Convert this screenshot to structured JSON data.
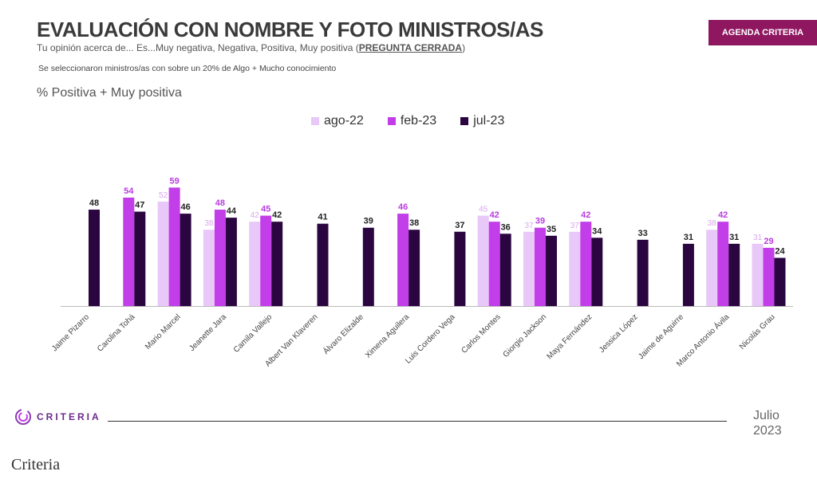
{
  "header": {
    "title": "EVALUACIÓN CON NOMBRE Y FOTO MINISTROS/AS",
    "subtitle": "Tu opinión acerca de... Es...Muy negativa, Negativa, Positiva, Muy positiva (",
    "subtitle_emph": "PREGUNTA CERRADA",
    "subtitle_end": ")",
    "note": "Se seleccionaron ministros/as con sobre un 20% de Algo + Mucho conocimiento",
    "badge": "AGENDA CRITERIA"
  },
  "footer": {
    "logo": "CRITERIA",
    "month": "Julio",
    "year": "2023",
    "caption": "Criteria"
  },
  "chart_data": {
    "type": "bar",
    "title": "EVALUACIÓN CON NOMBRE Y FOTO MINISTROS/AS",
    "ylabel": "% Positiva + Muy positiva",
    "xlabel": "",
    "ylim": [
      0,
      60
    ],
    "grid": false,
    "legend_position": "top-center",
    "categories": [
      "Jaime Pizarro",
      "Carolina Tohá",
      "Mario Marcel",
      "Jeanette Jara",
      "Camila Vallejo",
      "Albert Van Klaveren",
      "Álvaro Elizalde",
      "Ximena Aguilera",
      "Luis Cordero Vega",
      "Carlos Montes",
      "Giorgio Jackson",
      "Maya Fernández",
      "Jessica López",
      "Jaime de Aguirre",
      "Marco Antonio Ávila",
      "Nicolás Grau"
    ],
    "series": [
      {
        "name": "ago-22",
        "color": "#e8c8f8",
        "label_color": "#d9a6ef",
        "values": [
          null,
          null,
          52,
          38,
          42,
          null,
          null,
          null,
          null,
          45,
          37,
          37,
          null,
          null,
          38,
          31
        ]
      },
      {
        "name": "feb-23",
        "color": "#c13ee8",
        "label_color": "#b83ce0",
        "values": [
          null,
          54,
          59,
          48,
          45,
          null,
          null,
          46,
          null,
          42,
          39,
          42,
          null,
          null,
          42,
          29
        ]
      },
      {
        "name": "jul-23",
        "color": "#2b0540",
        "label_color": "#222222",
        "values": [
          48,
          47,
          46,
          44,
          42,
          41,
          39,
          38,
          37,
          36,
          35,
          34,
          33,
          31,
          31,
          24
        ]
      }
    ]
  }
}
